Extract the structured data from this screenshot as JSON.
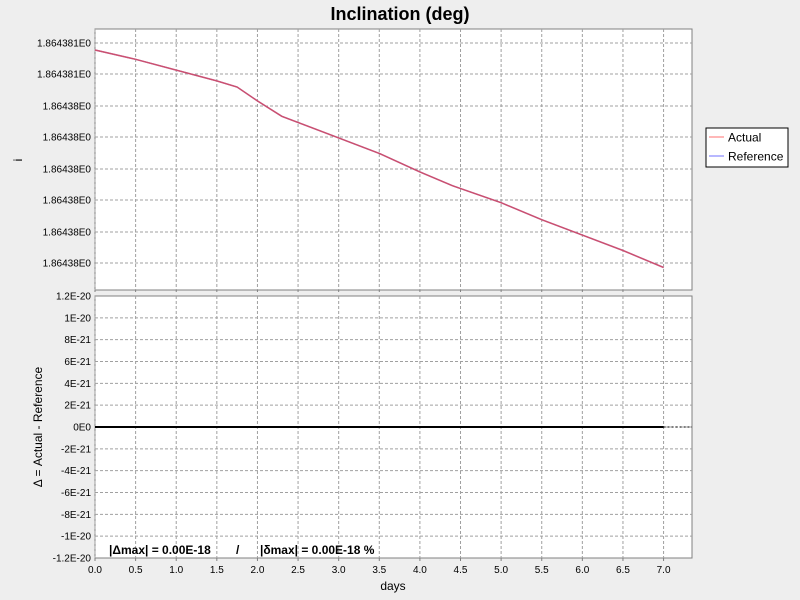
{
  "chart_data": [
    {
      "type": "line",
      "title": "Inclination (deg)",
      "ylabel": "i",
      "xlabel": "",
      "xlim": [
        0.0,
        7.35
      ],
      "x_ticks": [
        0.0,
        0.5,
        1.0,
        1.5,
        2.0,
        2.5,
        3.0,
        3.5,
        4.0,
        4.5,
        5.0,
        5.5,
        6.0,
        6.5,
        7.0
      ],
      "x_tick_labels": [
        "0.0",
        "0.5",
        "1.0",
        "1.5",
        "2.0",
        "2.5",
        "3.0",
        "3.5",
        "4.0",
        "4.5",
        "5.0",
        "5.5",
        "6.0",
        "6.5",
        "7.0"
      ],
      "y_tick_labels": [
        "1.864381E0",
        "1.864381E0",
        "1.86438E0",
        "1.86438E0",
        "1.86438E0",
        "1.86438E0",
        "1.86438E0",
        "1.86438E0"
      ],
      "grid": true,
      "legend_position": "right",
      "series": [
        {
          "name": "Actual",
          "color": "#ff7070",
          "x": [
            0.0,
            0.5,
            1.0,
            1.5,
            1.75,
            2.0,
            2.3,
            3.0,
            3.5,
            4.0,
            4.4,
            5.0,
            5.5,
            6.0,
            6.5,
            7.0
          ],
          "y": [
            0.0,
            0.6,
            1.3,
            2.0,
            2.4,
            3.3,
            4.3,
            5.7,
            6.7,
            7.9,
            8.8,
            9.9,
            11.0,
            12.0,
            13.0,
            14.1
          ]
        },
        {
          "name": "Reference",
          "color": "#7070ff",
          "x": [
            0.0,
            0.5,
            1.0,
            1.5,
            1.75,
            2.0,
            2.3,
            3.0,
            3.5,
            4.0,
            4.4,
            5.0,
            5.5,
            6.0,
            6.5,
            7.0
          ],
          "y": [
            0.0,
            0.6,
            1.3,
            2.0,
            2.4,
            3.3,
            4.3,
            5.7,
            6.7,
            7.9,
            8.8,
            9.9,
            11.0,
            12.0,
            13.0,
            14.1
          ]
        }
      ]
    },
    {
      "type": "line",
      "title": "",
      "ylabel": "Δ = Actual - Reference",
      "xlabel": "days",
      "xlim": [
        0.0,
        7.35
      ],
      "ylim": [
        -1.2e-20,
        1.2e-20
      ],
      "x_ticks": [
        0.0,
        0.5,
        1.0,
        1.5,
        2.0,
        2.5,
        3.0,
        3.5,
        4.0,
        4.5,
        5.0,
        5.5,
        6.0,
        6.5,
        7.0
      ],
      "x_tick_labels": [
        "0.0",
        "0.5",
        "1.0",
        "1.5",
        "2.0",
        "2.5",
        "3.0",
        "3.5",
        "4.0",
        "4.5",
        "5.0",
        "5.5",
        "6.0",
        "6.5",
        "7.0"
      ],
      "y_ticks": [
        1.2e-20,
        1e-20,
        8e-21,
        6e-21,
        4e-21,
        2e-21,
        0,
        -2e-21,
        -4e-21,
        -6e-21,
        -8e-21,
        -1e-20,
        -1.2e-20
      ],
      "y_tick_labels": [
        "1.2E-20",
        "1E-20",
        "8E-21",
        "6E-21",
        "4E-21",
        "2E-21",
        "0E0",
        "-2E-21",
        "-4E-21",
        "-6E-21",
        "-8E-21",
        "-1E-20",
        "-1.2E-20"
      ],
      "grid": true,
      "series": [
        {
          "color": "#000000",
          "x": [
            0.0,
            7.0
          ],
          "y": [
            0,
            0
          ]
        }
      ],
      "zero_line": true,
      "annotation": {
        "delta_max": "|Δmax| = 0.00E-18",
        "separator": "/",
        "rel_max": "|δmax| = 0.00E-18 %"
      }
    }
  ]
}
